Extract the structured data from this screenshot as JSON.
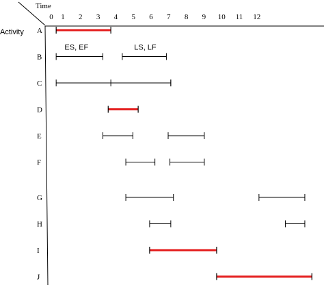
{
  "chart_data": {
    "type": "gantt",
    "time_label": "Time",
    "activity_label": "Activity",
    "ticks": [
      "0",
      "1",
      "2",
      "3",
      "4",
      "5",
      "6",
      "7",
      "8",
      "9",
      "10",
      "11",
      "12"
    ],
    "annotations": [
      {
        "text": "ES, EF",
        "activity": "B",
        "x": 1.35
      },
      {
        "text": "LS, LF",
        "activity": "B",
        "x": 5.25
      }
    ],
    "activities": [
      {
        "name": "A",
        "bars": [
          {
            "start": 0.2,
            "end": 3.3,
            "critical": true
          }
        ]
      },
      {
        "name": "B",
        "bars": [
          {
            "start": 0.2,
            "end": 2.85,
            "critical": false
          },
          {
            "start": 3.95,
            "end": 6.45,
            "critical": false
          }
        ]
      },
      {
        "name": "C",
        "bars": [
          {
            "start": 0.2,
            "end": 6.7,
            "critical": false
          },
          {
            "start": 3.3,
            "end": 6.7,
            "critical": false
          }
        ]
      },
      {
        "name": "D",
        "bars": [
          {
            "start": 3.15,
            "end": 4.85,
            "critical": true
          }
        ]
      },
      {
        "name": "E",
        "bars": [
          {
            "start": 2.85,
            "end": 4.55,
            "critical": false
          },
          {
            "start": 6.55,
            "end": 8.6,
            "critical": false
          }
        ]
      },
      {
        "name": "F",
        "bars": [
          {
            "start": 4.15,
            "end": 5.8,
            "critical": false
          },
          {
            "start": 6.65,
            "end": 8.6,
            "critical": false
          }
        ]
      },
      {
        "name": "G",
        "bars": [
          {
            "start": 4.15,
            "end": 6.85,
            "critical": false
          },
          {
            "start": 11.7,
            "end": 14.3,
            "critical": false
          }
        ]
      },
      {
        "name": "H",
        "bars": [
          {
            "start": 5.5,
            "end": 6.7,
            "critical": false
          },
          {
            "start": 13.2,
            "end": 14.3,
            "critical": false
          }
        ]
      },
      {
        "name": "I",
        "bars": [
          {
            "start": 5.5,
            "end": 9.3,
            "critical": true
          }
        ]
      },
      {
        "name": "J",
        "bars": [
          {
            "start": 9.3,
            "end": 14.7,
            "critical": true
          }
        ]
      }
    ]
  }
}
